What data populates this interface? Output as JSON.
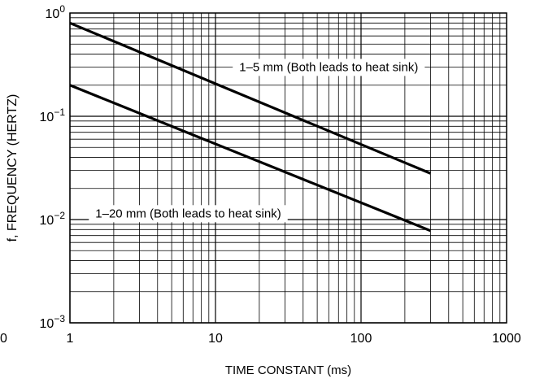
{
  "chart_data": {
    "type": "line",
    "xscale": "log",
    "yscale": "log",
    "xlim": [
      1,
      1000
    ],
    "ylim": [
      0.001,
      1
    ],
    "grid": true,
    "xlabel": "TIME CONSTANT (ms)",
    "ylabel": "f, FREQUENCY (HERTZ)",
    "x_ticks": [
      {
        "value": 1,
        "label": "1"
      },
      {
        "value": 10,
        "label": "10"
      },
      {
        "value": 100,
        "label": "100"
      },
      {
        "value": 1000,
        "label": "1000"
      }
    ],
    "y_ticks": [
      {
        "value": 1,
        "base": "10",
        "exp": "0"
      },
      {
        "value": 0.1,
        "base": "10",
        "exp": "−1"
      },
      {
        "value": 0.01,
        "base": "10",
        "exp": "−2"
      },
      {
        "value": 0.001,
        "base": "10",
        "exp": "−3"
      }
    ],
    "edge_label": "0",
    "series": [
      {
        "name": "1–5 mm (Both leads to heat sink)",
        "x": [
          1,
          300
        ],
        "y": [
          0.8,
          0.028
        ]
      },
      {
        "name": "1–20 mm (Both leads to heat sink)",
        "x": [
          1,
          300
        ],
        "y": [
          0.2,
          0.0078
        ]
      }
    ],
    "colors": {
      "line": "#000000",
      "grid": "#000000",
      "background": "#ffffff"
    }
  }
}
